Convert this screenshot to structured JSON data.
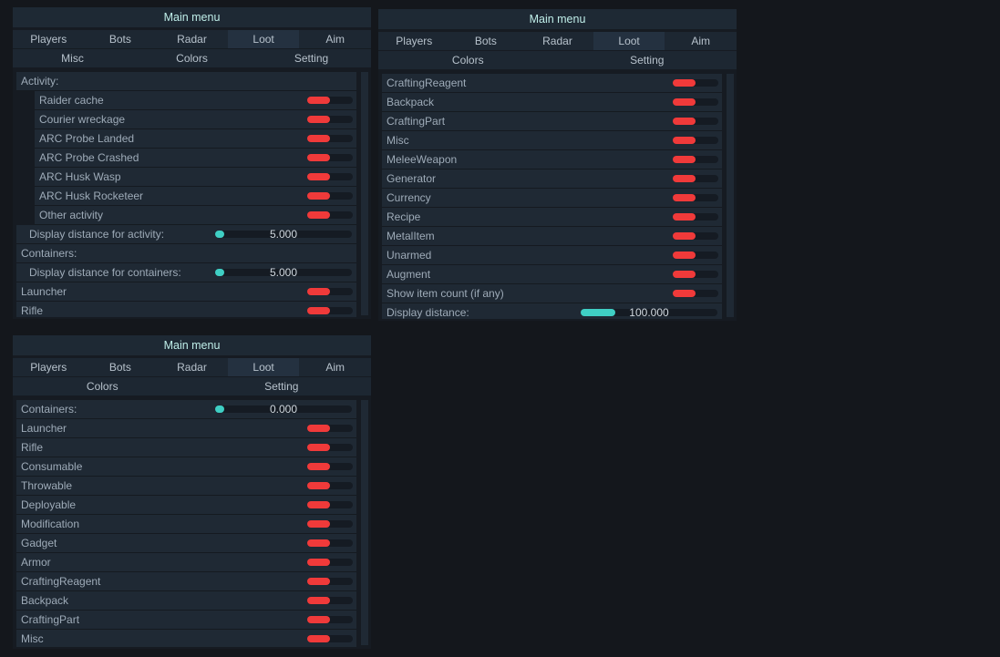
{
  "colors": {
    "toggle_on": "#f03a3a",
    "slider": "#3fcfc4",
    "title": "#bfeee9"
  },
  "panels": [
    {
      "title": "Main menu",
      "tabs_row1": [
        "Players",
        "Bots",
        "Radar",
        "Loot",
        "Aim"
      ],
      "tabs_row2": [
        "Misc",
        "Colors",
        "Setting"
      ],
      "active_tab": "Loot",
      "rows": [
        {
          "type": "header",
          "label": "Activity:"
        },
        {
          "type": "toggle",
          "label": "Raider cache",
          "sub": true,
          "on": true
        },
        {
          "type": "toggle",
          "label": "Courier wreckage",
          "sub": true,
          "on": true
        },
        {
          "type": "toggle",
          "label": "ARC Probe Landed",
          "sub": true,
          "on": true
        },
        {
          "type": "toggle",
          "label": "ARC Probe Crashed",
          "sub": true,
          "on": true
        },
        {
          "type": "toggle",
          "label": "ARC Husk Wasp",
          "sub": true,
          "on": true
        },
        {
          "type": "toggle",
          "label": "ARC Husk Rocketeer",
          "sub": true,
          "on": true
        },
        {
          "type": "toggle",
          "label": "Other activity",
          "sub": true,
          "on": true
        },
        {
          "type": "slider",
          "label": "Display distance for activity:",
          "value": "5.000",
          "fraction": 0.02,
          "indent": true
        },
        {
          "type": "header",
          "label": "Containers:"
        },
        {
          "type": "slider",
          "label": "Display distance for containers:",
          "value": "5.000",
          "fraction": 0.02,
          "indent": true
        },
        {
          "type": "toggle",
          "label": "Launcher",
          "on": true
        },
        {
          "type": "toggle",
          "label": "Rifle",
          "on": true
        }
      ]
    },
    {
      "title": "Main menu",
      "tabs_row1": [
        "Players",
        "Bots",
        "Radar",
        "Loot",
        "Aim"
      ],
      "tabs_row2": [
        "Colors",
        "Setting"
      ],
      "active_tab": "Loot",
      "rows": [
        {
          "type": "toggle",
          "label": "CraftingReagent",
          "on": true
        },
        {
          "type": "toggle",
          "label": "Backpack",
          "on": true
        },
        {
          "type": "toggle",
          "label": "CraftingPart",
          "on": true
        },
        {
          "type": "toggle",
          "label": "Misc",
          "on": true
        },
        {
          "type": "toggle",
          "label": "MeleeWeapon",
          "on": true
        },
        {
          "type": "toggle",
          "label": "Generator",
          "on": true
        },
        {
          "type": "toggle",
          "label": "Currency",
          "on": true
        },
        {
          "type": "toggle",
          "label": "Recipe",
          "on": true
        },
        {
          "type": "toggle",
          "label": "MetalItem",
          "on": true
        },
        {
          "type": "toggle",
          "label": "Unarmed",
          "on": true
        },
        {
          "type": "toggle",
          "label": "Augment",
          "on": true
        },
        {
          "type": "toggle",
          "label": "Show item count (if any)",
          "on": true
        },
        {
          "type": "slider",
          "label": "Display distance:",
          "value": "100.000",
          "fraction": 0.25
        }
      ]
    },
    {
      "title": "Main menu",
      "tabs_row1": [
        "Players",
        "Bots",
        "Radar",
        "Loot",
        "Aim"
      ],
      "tabs_row2": [
        "Colors",
        "Setting"
      ],
      "active_tab": "Loot",
      "rows": [
        {
          "type": "slider",
          "label": "Containers:",
          "value": "0.000",
          "fraction": 0.0
        },
        {
          "type": "toggle",
          "label": "Launcher",
          "on": true
        },
        {
          "type": "toggle",
          "label": "Rifle",
          "on": true
        },
        {
          "type": "toggle",
          "label": "Consumable",
          "on": true
        },
        {
          "type": "toggle",
          "label": "Throwable",
          "on": true
        },
        {
          "type": "toggle",
          "label": "Deployable",
          "on": true
        },
        {
          "type": "toggle",
          "label": "Modification",
          "on": true
        },
        {
          "type": "toggle",
          "label": "Gadget",
          "on": true
        },
        {
          "type": "toggle",
          "label": "Armor",
          "on": true
        },
        {
          "type": "toggle",
          "label": "CraftingReagent",
          "on": true
        },
        {
          "type": "toggle",
          "label": "Backpack",
          "on": true
        },
        {
          "type": "toggle",
          "label": "CraftingPart",
          "on": true
        },
        {
          "type": "toggle",
          "label": "Misc",
          "on": true
        }
      ]
    }
  ]
}
